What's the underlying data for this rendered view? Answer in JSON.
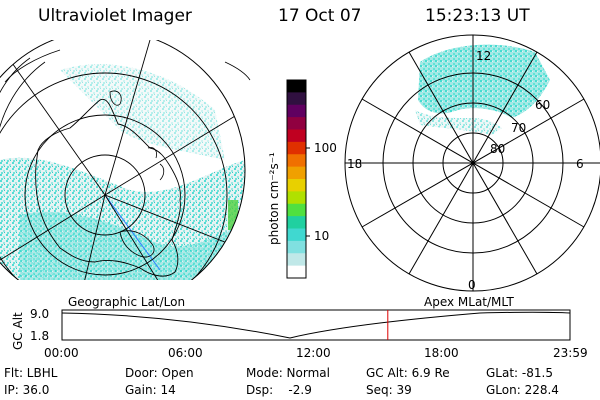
{
  "header": {
    "title": "Ultraviolet Imager",
    "date": "17 Oct 07",
    "time": "15:23:13 UT"
  },
  "colorbar": {
    "unit_label": "photon cm⁻²s⁻¹",
    "ticks": [
      "100",
      "10"
    ],
    "colors": [
      "#000000",
      "#301040",
      "#600060",
      "#900040",
      "#c00020",
      "#e03000",
      "#f07000",
      "#f0a000",
      "#e8d000",
      "#b0e000",
      "#50e040",
      "#20d0a0",
      "#40d8d0",
      "#80e0e0",
      "#c0e8e8",
      "#ffffff"
    ]
  },
  "left_panel": {
    "label": "Geographic Lat/Lon"
  },
  "right_panel": {
    "label": "Apex MLat/MLT",
    "lat_labels": [
      "60",
      "70",
      "80"
    ],
    "mlt_labels": [
      "12",
      "18",
      "6",
      "0"
    ]
  },
  "altitude_plot": {
    "ylabel": "GC Alt",
    "yticks": [
      "9.0",
      "1.8"
    ],
    "xticks": [
      "00:00",
      "06:00",
      "12:00",
      "18:00",
      "23:59"
    ],
    "current_time_marker_hours": 15.39,
    "marker_color": "#dd0000"
  },
  "info": {
    "filter": "Flt: LBHL",
    "ip": "IP: 36.0",
    "door": "Door: Open",
    "gain": "Gain: 14",
    "mode": "Mode: Normal",
    "dsp": "Dsp:    -2.9",
    "gc_alt": "GC Alt: 6.9 Re",
    "seq": "Seq: 39",
    "glat": "GLat: -81.5",
    "glon": "GLon: 228.4"
  }
}
